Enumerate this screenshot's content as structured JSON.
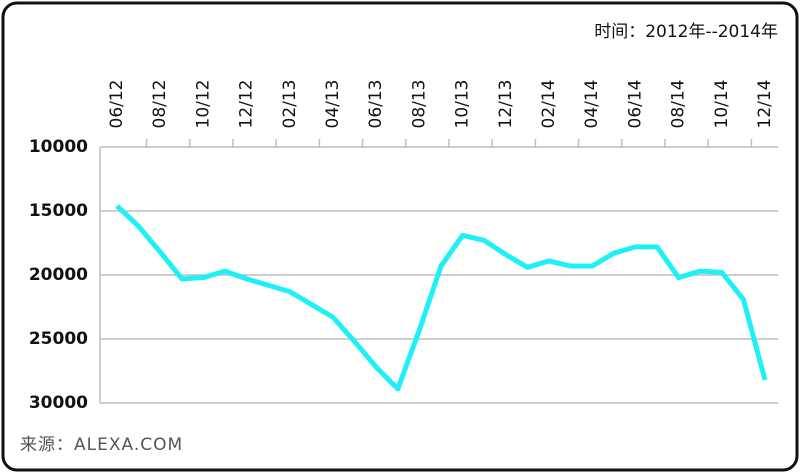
{
  "chart_data": {
    "type": "line",
    "time_note": "时间：2012年--2014年",
    "source_note": "来源：ALEXA.COM",
    "categories": [
      "06/12",
      null,
      "08/12",
      null,
      "10/12",
      null,
      "12/12",
      null,
      "02/13",
      null,
      "04/13",
      null,
      "06/13",
      null,
      "08/13",
      null,
      "10/13",
      null,
      "12/13",
      null,
      "02/14",
      null,
      "04/14",
      null,
      "06/14",
      null,
      "08/14",
      null,
      "10/14",
      null,
      "12/14"
    ],
    "values": [
      14600,
      16200,
      18200,
      20300,
      20200,
      19700,
      20300,
      20800,
      21300,
      22300,
      23300,
      25200,
      27200,
      28900,
      24300,
      19300,
      16900,
      17300,
      18400,
      19400,
      18900,
      19300,
      19300,
      18300,
      17800,
      17800,
      20200,
      19700,
      19800,
      21900,
      28200
    ],
    "color": "#1ff0f7",
    "ylim": [
      10000,
      30000
    ],
    "yticks": [
      10000,
      15000,
      20000,
      25000,
      30000
    ],
    "y_inverted": true,
    "grid": true
  }
}
